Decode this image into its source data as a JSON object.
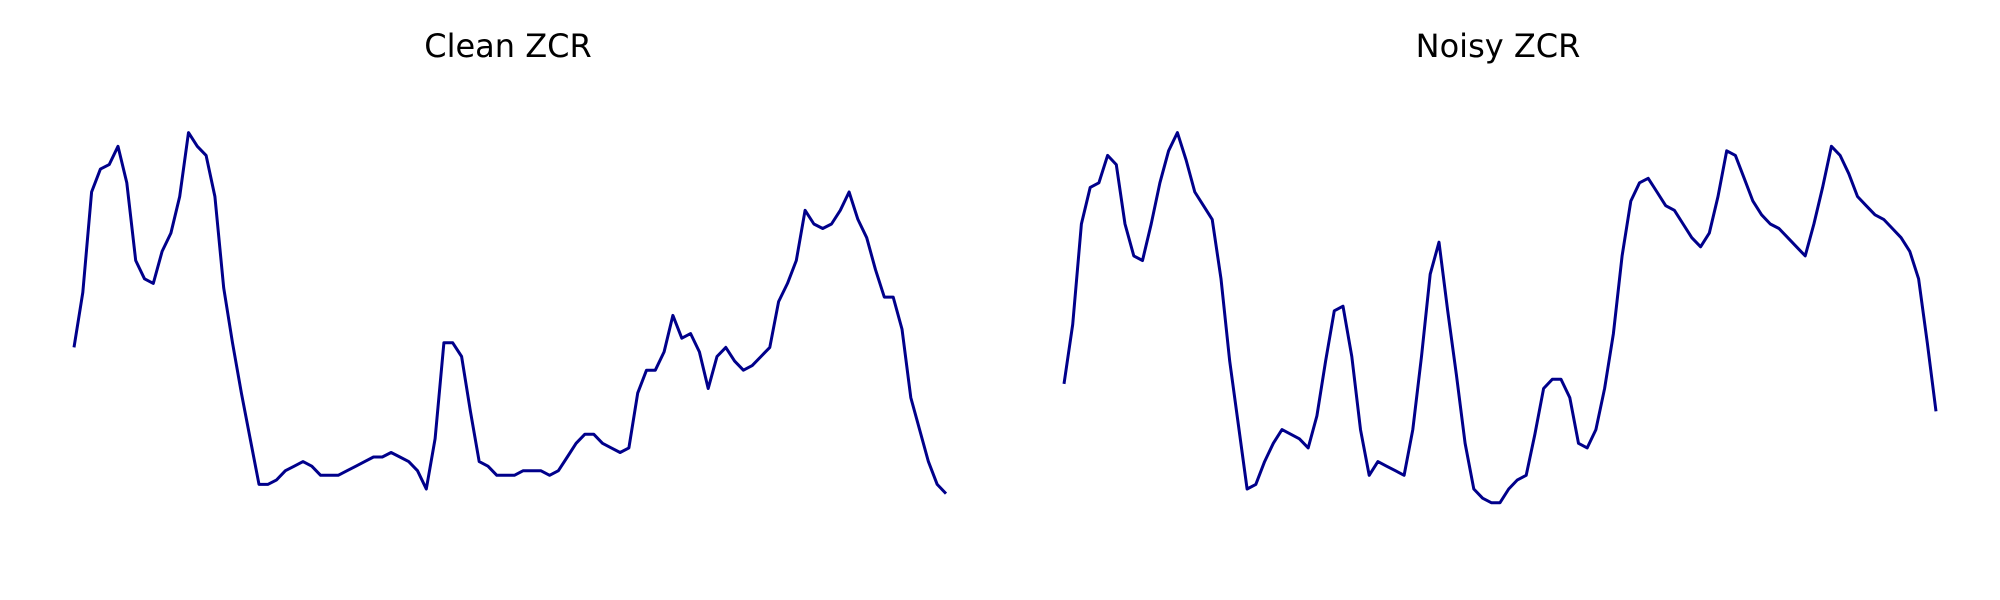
{
  "chart_data": [
    {
      "type": "line",
      "title": "Clean ZCR",
      "xlabel": "",
      "ylabel": "",
      "grid": false,
      "axes_visible": false,
      "ylim": [
        0.0,
        1.0
      ],
      "color": "#00008b",
      "series": [
        {
          "values": [
            0.45,
            0.57,
            0.79,
            0.84,
            0.85,
            0.89,
            0.81,
            0.64,
            0.6,
            0.59,
            0.66,
            0.7,
            0.78,
            0.92,
            0.89,
            0.87,
            0.78,
            0.58,
            0.46,
            0.35,
            0.25,
            0.15,
            0.15,
            0.16,
            0.18,
            0.19,
            0.2,
            0.19,
            0.17,
            0.17,
            0.17,
            0.18,
            0.19,
            0.2,
            0.21,
            0.21,
            0.22,
            0.21,
            0.2,
            0.18,
            0.14,
            0.25,
            0.46,
            0.46,
            0.43,
            0.31,
            0.2,
            0.19,
            0.17,
            0.17,
            0.17,
            0.18,
            0.18,
            0.18,
            0.17,
            0.18,
            0.21,
            0.24,
            0.26,
            0.26,
            0.24,
            0.23,
            0.22,
            0.23,
            0.35,
            0.4,
            0.4,
            0.44,
            0.52,
            0.47,
            0.48,
            0.44,
            0.36,
            0.43,
            0.45,
            0.42,
            0.4,
            0.41,
            0.43,
            0.45,
            0.55,
            0.59,
            0.64,
            0.75,
            0.72,
            0.71,
            0.72,
            0.75,
            0.79,
            0.73,
            0.69,
            0.62,
            0.56,
            0.56,
            0.49,
            0.34,
            0.27,
            0.2,
            0.15,
            0.13
          ]
        }
      ]
    },
    {
      "type": "line",
      "title": "Noisy ZCR",
      "xlabel": "",
      "ylabel": "",
      "grid": false,
      "axes_visible": false,
      "ylim": [
        0.0,
        1.0
      ],
      "color": "#00008b",
      "series": [
        {
          "values": [
            0.37,
            0.5,
            0.72,
            0.8,
            0.81,
            0.87,
            0.85,
            0.72,
            0.65,
            0.64,
            0.72,
            0.81,
            0.88,
            0.92,
            0.86,
            0.79,
            0.76,
            0.73,
            0.6,
            0.42,
            0.28,
            0.14,
            0.15,
            0.2,
            0.24,
            0.27,
            0.26,
            0.25,
            0.23,
            0.3,
            0.42,
            0.53,
            0.54,
            0.43,
            0.27,
            0.17,
            0.2,
            0.19,
            0.18,
            0.17,
            0.27,
            0.43,
            0.61,
            0.68,
            0.53,
            0.39,
            0.24,
            0.14,
            0.12,
            0.11,
            0.11,
            0.14,
            0.16,
            0.17,
            0.26,
            0.36,
            0.38,
            0.38,
            0.34,
            0.24,
            0.23,
            0.27,
            0.36,
            0.48,
            0.65,
            0.77,
            0.81,
            0.82,
            0.79,
            0.76,
            0.75,
            0.72,
            0.69,
            0.67,
            0.7,
            0.78,
            0.88,
            0.87,
            0.82,
            0.77,
            0.74,
            0.72,
            0.71,
            0.69,
            0.67,
            0.65,
            0.72,
            0.8,
            0.89,
            0.87,
            0.83,
            0.78,
            0.76,
            0.74,
            0.73,
            0.71,
            0.69,
            0.66,
            0.6,
            0.46,
            0.31
          ]
        }
      ]
    }
  ]
}
